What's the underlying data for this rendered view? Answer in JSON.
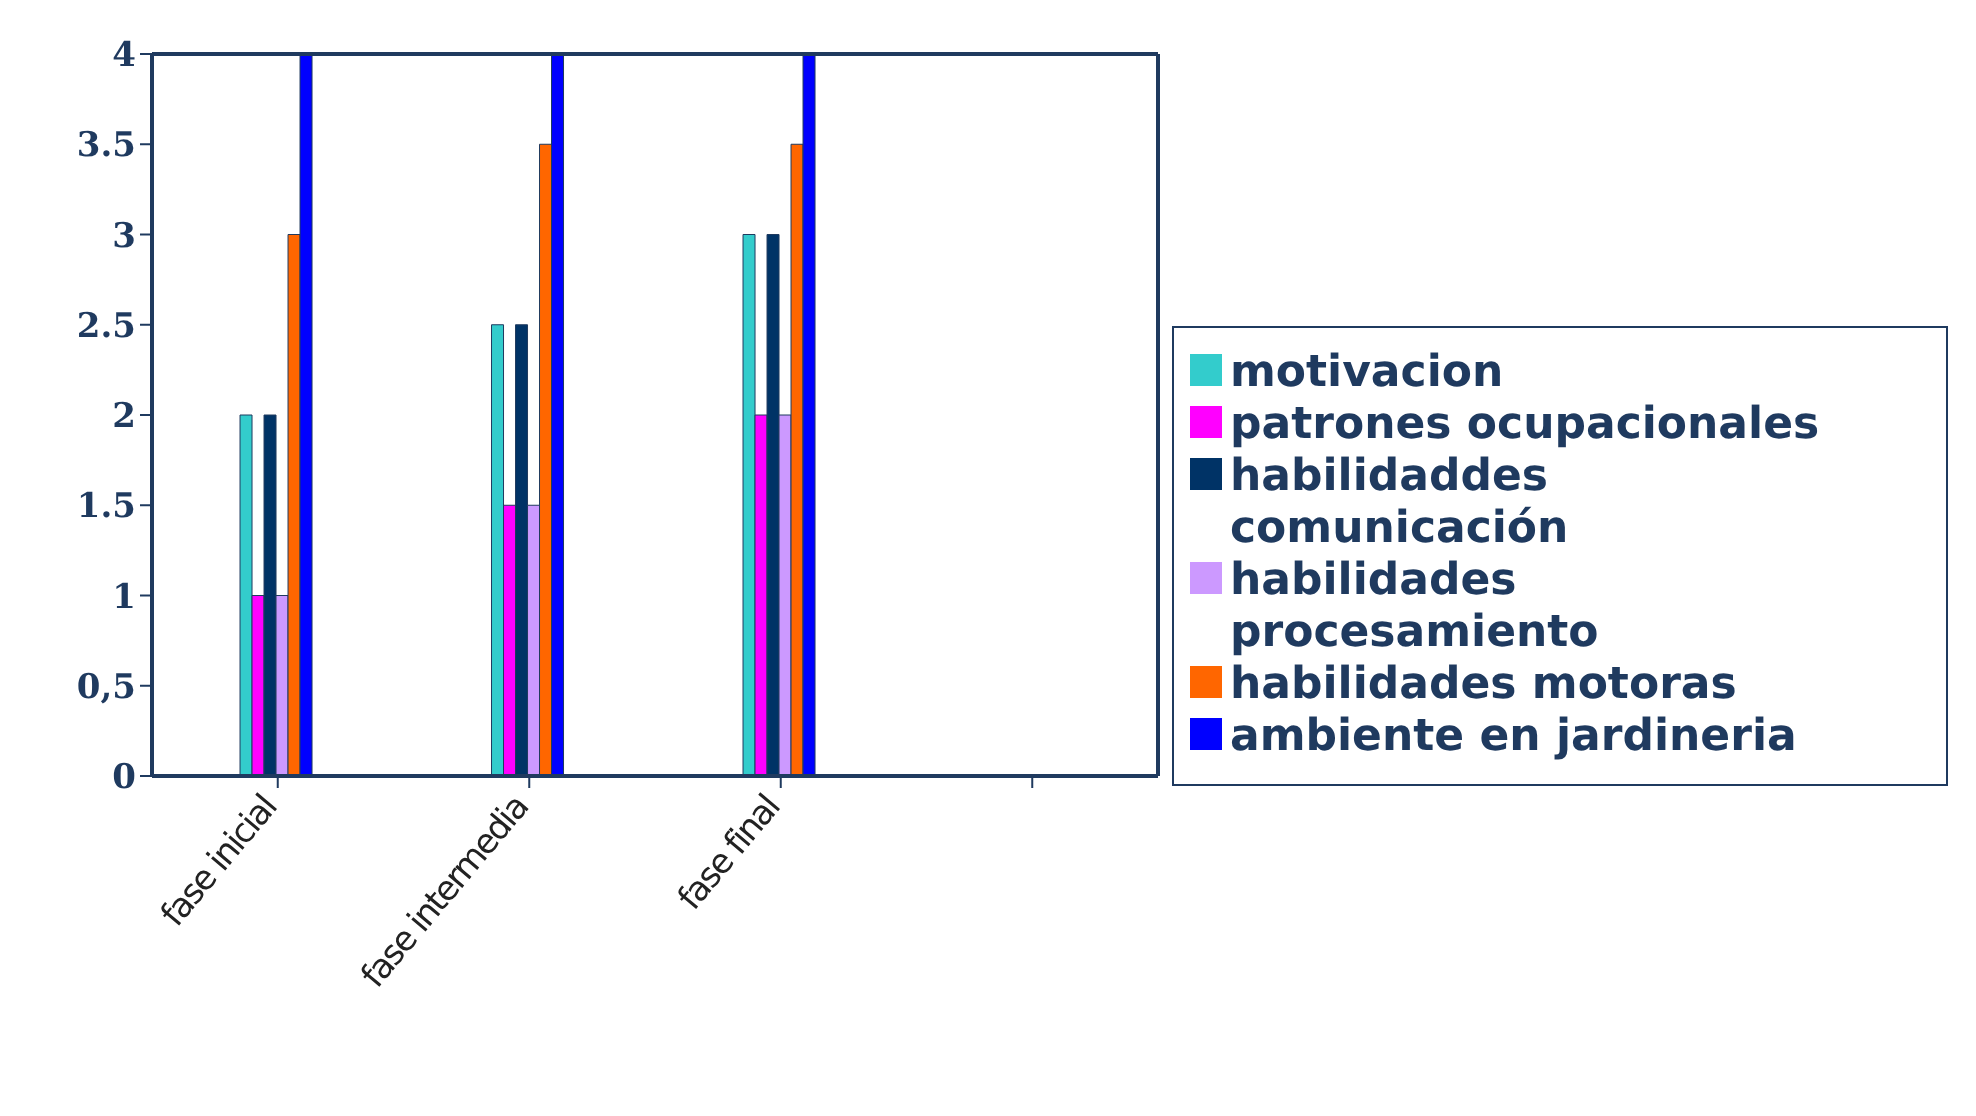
{
  "chart_data": {
    "type": "bar",
    "categories": [
      "fase inicial",
      "fase intermedia",
      "fase final",
      null
    ],
    "series": [
      {
        "name": "motivacion",
        "color": "#33cccc",
        "values": [
          2,
          2.5,
          3,
          null
        ]
      },
      {
        "name": "patrones ocupacionales",
        "color": "#ff00ff",
        "values": [
          1,
          1.5,
          2,
          null
        ]
      },
      {
        "name": "habilidaddes comunicación",
        "color": "#003366",
        "values": [
          2,
          2.5,
          3,
          null
        ]
      },
      {
        "name": "habilidades procesamiento",
        "color": "#cc99ff",
        "values": [
          1,
          1.5,
          2,
          null
        ]
      },
      {
        "name": "habilidades motoras",
        "color": "#ff6600",
        "values": [
          3,
          3.5,
          3.5,
          null
        ]
      },
      {
        "name": "ambiente en jardineria",
        "color": "#0000ff",
        "values": [
          4,
          4,
          4,
          null
        ]
      }
    ],
    "ylim": [
      0,
      4
    ],
    "yticks": [
      0,
      {
        "value": 0.5,
        "label": "0,5"
      },
      1,
      1.5,
      2,
      2.5,
      3,
      3.5,
      4
    ],
    "grid": false,
    "legend": "right"
  }
}
